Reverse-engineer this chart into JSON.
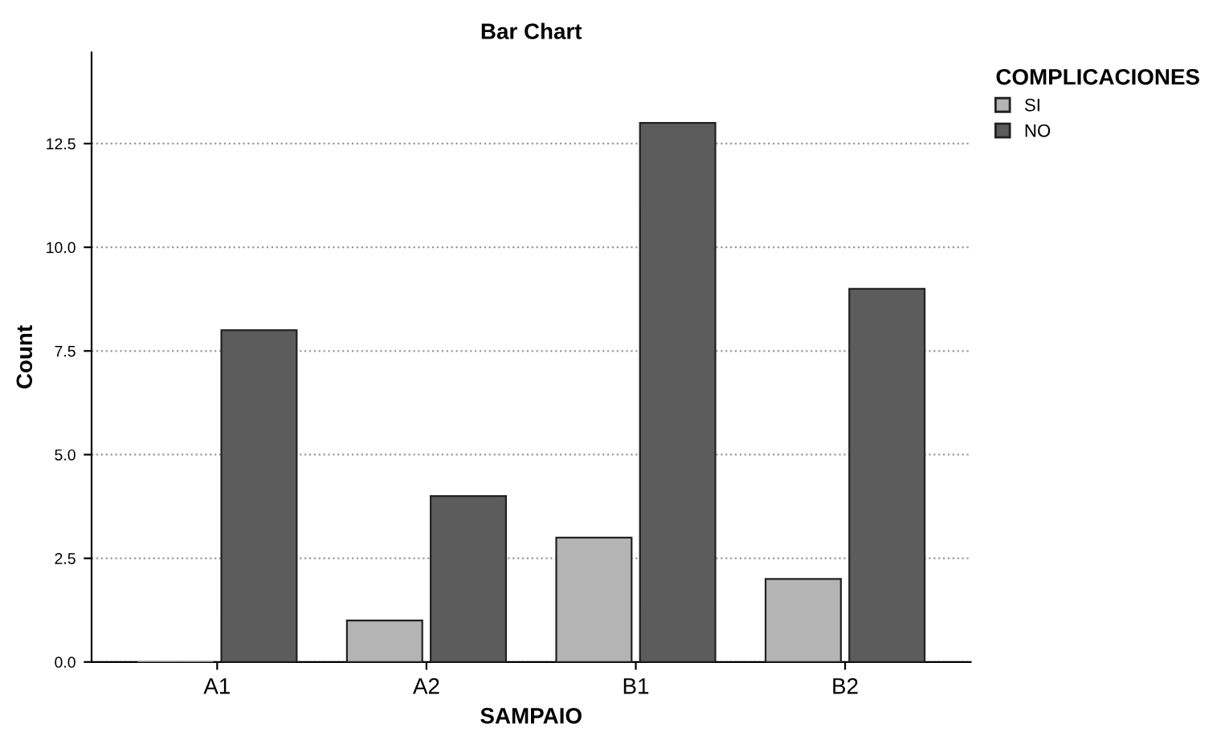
{
  "chart_data": {
    "type": "bar",
    "title": "Bar Chart",
    "xlabel": "SAMPAIO",
    "ylabel": "Count",
    "legend_title": "COMPLICACIONES",
    "categories": [
      "A1",
      "A2",
      "B1",
      "B2"
    ],
    "series": [
      {
        "name": "SI",
        "color": "#b4b4b4",
        "values": [
          0,
          1,
          3,
          2
        ]
      },
      {
        "name": "NO",
        "color": "#5c5c5c",
        "values": [
          8,
          4,
          13,
          9
        ]
      }
    ],
    "ylim": [
      0,
      14.7
    ],
    "yticks": [
      {
        "value": 0,
        "label": "0.0"
      },
      {
        "value": 2.5,
        "label": "2.5"
      },
      {
        "value": 5,
        "label": "5.0"
      },
      {
        "value": 7.5,
        "label": "7.5"
      },
      {
        "value": 10,
        "label": "10.0"
      },
      {
        "value": 12.5,
        "label": "12.5"
      }
    ],
    "grid": "y",
    "legend": "top right"
  }
}
